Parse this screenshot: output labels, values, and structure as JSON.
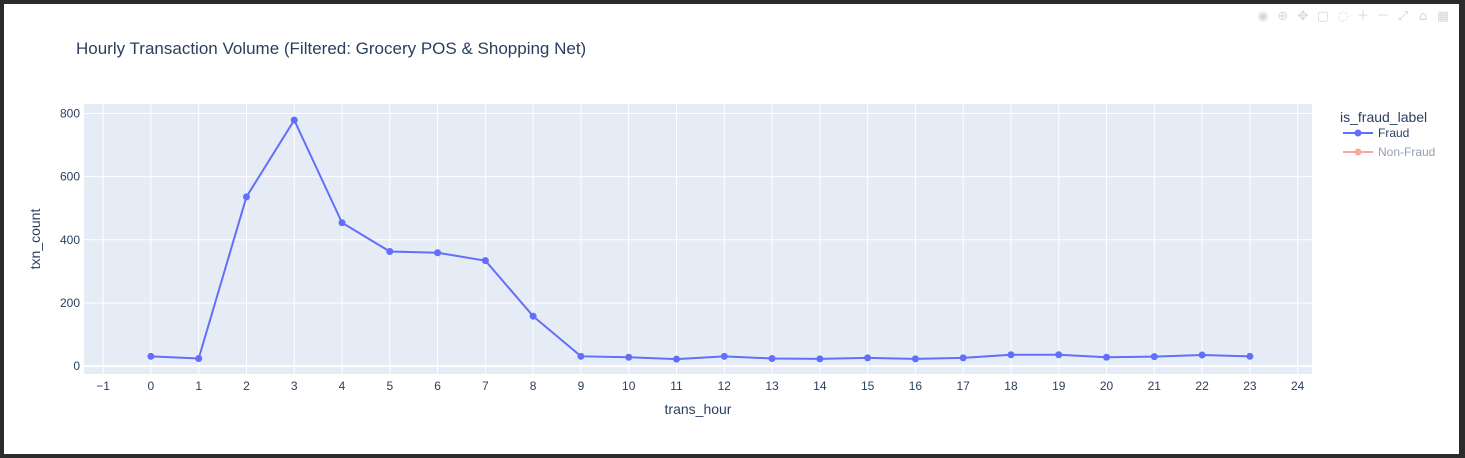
{
  "modebar": {
    "icons": [
      "camera-icon",
      "zoom-icon",
      "pan-icon",
      "box-select-icon",
      "lasso-icon",
      "zoom-in-icon",
      "zoom-out-icon",
      "autoscale-icon",
      "reset-axes-icon",
      "plotly-logo-icon"
    ],
    "glyphs": [
      "◉",
      "⊕",
      "✥",
      "▢",
      "◌",
      "＋",
      "－",
      "⤢",
      "⌂",
      "▦"
    ]
  },
  "chart_data": {
    "type": "line",
    "title": "Hourly Transaction Volume (Filtered: Grocery POS & Shopping Net)",
    "xlabel": "trans_hour",
    "ylabel": "txn_count",
    "xlim": [
      -1.4,
      24.3
    ],
    "ylim": [
      -25,
      830
    ],
    "xticks": [
      -1,
      0,
      1,
      2,
      3,
      4,
      5,
      6,
      7,
      8,
      9,
      10,
      11,
      12,
      13,
      14,
      15,
      16,
      17,
      18,
      19,
      20,
      21,
      22,
      23,
      24
    ],
    "xtick_labels": [
      "−1",
      "0",
      "1",
      "2",
      "3",
      "4",
      "5",
      "6",
      "7",
      "8",
      "9",
      "10",
      "11",
      "12",
      "13",
      "14",
      "15",
      "16",
      "17",
      "18",
      "19",
      "20",
      "21",
      "22",
      "23",
      "24"
    ],
    "yticks": [
      0,
      200,
      400,
      600,
      800
    ],
    "ytick_labels": [
      "0",
      "200",
      "400",
      "600",
      "800"
    ],
    "grid": true,
    "legend_title": "is_fraud_label",
    "legend_position": "right",
    "colors": {
      "plot_bg": "#E5ECF6",
      "grid": "#ffffff",
      "text": "#2a3f5f"
    },
    "series": [
      {
        "name": "Fraud",
        "color": "#636EFA",
        "visible": true,
        "x": [
          0,
          1,
          2,
          3,
          4,
          5,
          6,
          7,
          8,
          9,
          10,
          11,
          12,
          13,
          14,
          15,
          16,
          17,
          18,
          19,
          20,
          21,
          22,
          23
        ],
        "y": [
          31,
          24,
          536,
          779,
          454,
          363,
          359,
          334,
          158,
          31,
          28,
          22,
          31,
          24,
          23,
          26,
          23,
          26,
          36,
          36,
          28,
          30,
          35,
          31
        ]
      },
      {
        "name": "Non-Fraud",
        "color": "#EF553B",
        "visible": false,
        "x": [],
        "y": []
      }
    ]
  }
}
